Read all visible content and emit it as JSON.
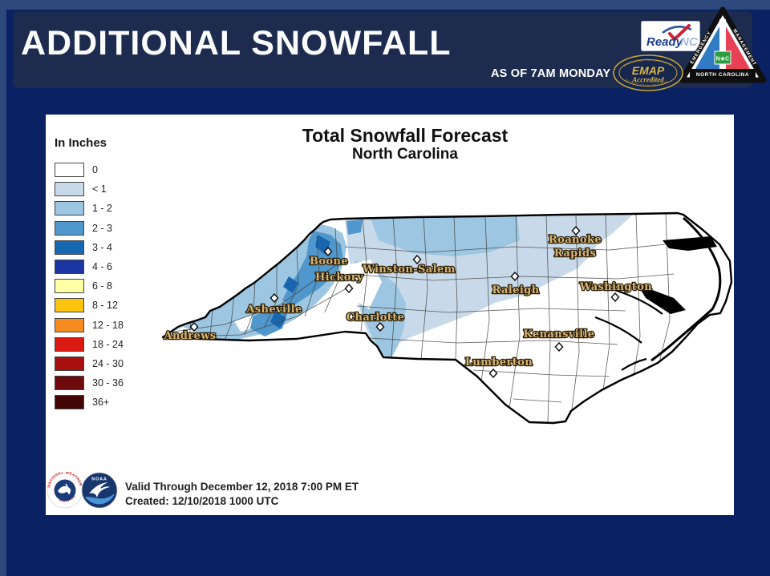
{
  "page": {
    "background": "#0a2264",
    "accent_border": "#2e4a7d",
    "header_bar_color": "#1c2b4e"
  },
  "header": {
    "title": "ADDITIONAL SNOWFALL",
    "as_of": "AS OF 7AM MONDAY"
  },
  "logos": {
    "readync": {
      "ready": "Ready",
      "nc": "NC"
    },
    "emap": {
      "title": "EMAP",
      "subtitle": "Accredited",
      "rim_top": "EMERGENCY MANAGEMENT",
      "rim_bottom": "ACCREDITATION PROGRAM"
    },
    "nc_em": {
      "left_edge": "EMERGENCY",
      "right_edge": "MANAGEMENT",
      "bottom_band": "NORTH CAROLINA",
      "center": "N★C"
    },
    "nws": {
      "ring_top": "NATIONAL WEATHER",
      "ring_bottom": "SERVICE"
    },
    "noaa": {
      "label": "NOAA"
    }
  },
  "map": {
    "title": "Total Snowfall Forecast",
    "subtitle": "North Carolina",
    "legend": {
      "heading": "In Inches",
      "items": [
        {
          "label": "0",
          "color": "#ffffff"
        },
        {
          "label": "< 1",
          "color": "#c8dae9"
        },
        {
          "label": "1 - 2",
          "color": "#9cc6e1"
        },
        {
          "label": "2 - 3",
          "color": "#4f97cc"
        },
        {
          "label": "3 - 4",
          "color": "#1767b1"
        },
        {
          "label": "4 - 6",
          "color": "#1b35a3"
        },
        {
          "label": "6 - 8",
          "color": "#ffffa6"
        },
        {
          "label": "8 - 12",
          "color": "#fcc40d"
        },
        {
          "label": "12 - 18",
          "color": "#f68b1f"
        },
        {
          "label": "18 - 24",
          "color": "#da1a10"
        },
        {
          "label": "24 - 30",
          "color": "#a8100f"
        },
        {
          "label": "30 - 36",
          "color": "#6d0b0d"
        },
        {
          "label": "36+",
          "color": "#420605"
        }
      ]
    },
    "cities": [
      {
        "lines": [
          "Boone"
        ],
        "marker": [
          409,
          314
        ],
        "label": [
          410,
          330
        ]
      },
      {
        "lines": [
          "Hickory"
        ],
        "marker": [
          435,
          360
        ],
        "label": [
          423,
          350
        ]
      },
      {
        "lines": [
          "Winston-Salem"
        ],
        "marker": [
          520,
          324
        ],
        "label": [
          510,
          340
        ]
      },
      {
        "lines": [
          "Asheville"
        ],
        "marker": [
          342,
          372
        ],
        "label": [
          342,
          390
        ]
      },
      {
        "lines": [
          "Charlotte"
        ],
        "marker": [
          474,
          408
        ],
        "label": [
          468,
          400
        ]
      },
      {
        "lines": [
          "Andrews"
        ],
        "marker": [
          242,
          408
        ],
        "label": [
          237,
          423
        ]
      },
      {
        "lines": [
          "Roanoke",
          "Rapids"
        ],
        "marker": [
          718,
          288
        ],
        "label": [
          717,
          303
        ]
      },
      {
        "lines": [
          "Raleigh"
        ],
        "marker": [
          642,
          345
        ],
        "label": [
          643,
          366
        ]
      },
      {
        "lines": [
          "Washington"
        ],
        "marker": [
          767,
          371
        ],
        "label": [
          768,
          362
        ]
      },
      {
        "lines": [
          "Kenansville"
        ],
        "marker": [
          697,
          433
        ],
        "label": [
          697,
          421
        ]
      },
      {
        "lines": [
          "Lumberton"
        ],
        "marker": [
          615,
          466
        ],
        "label": [
          622,
          456
        ]
      }
    ],
    "footer": {
      "line1": "Valid Through December 12, 2018 7:00 PM ET",
      "line2": "Created: 12/10/2018 1000 UTC"
    }
  }
}
